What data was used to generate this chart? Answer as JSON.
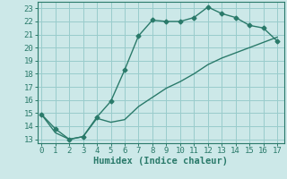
{
  "xlabel": "Humidex (Indice chaleur)",
  "bg_color": "#cce8e8",
  "grid_color": "#99cccc",
  "line_color": "#2a7a6a",
  "x_ticks": [
    0,
    1,
    2,
    3,
    4,
    5,
    6,
    7,
    8,
    9,
    10,
    11,
    12,
    13,
    14,
    15,
    16,
    17
  ],
  "y_ticks": [
    13,
    14,
    15,
    16,
    17,
    18,
    19,
    20,
    21,
    22,
    23
  ],
  "ylim": [
    12.7,
    23.5
  ],
  "xlim": [
    -0.3,
    17.5
  ],
  "curve1_x": [
    0,
    1,
    2,
    3,
    4,
    5,
    6,
    7,
    8,
    9,
    10,
    11,
    12,
    13,
    14,
    15,
    16,
    17
  ],
  "curve1_y": [
    14.9,
    13.8,
    13.0,
    13.2,
    14.7,
    15.9,
    18.3,
    20.9,
    22.1,
    22.0,
    22.0,
    22.3,
    23.1,
    22.6,
    22.3,
    21.7,
    21.5,
    20.5
  ],
  "curve2_x": [
    0,
    1,
    2,
    3,
    4,
    5,
    6,
    7,
    8,
    9,
    10,
    11,
    12,
    13,
    14,
    15,
    16,
    17
  ],
  "curve2_y": [
    14.9,
    13.5,
    13.0,
    13.2,
    14.6,
    14.3,
    14.5,
    15.5,
    16.2,
    16.9,
    17.4,
    18.0,
    18.7,
    19.2,
    19.6,
    20.0,
    20.4,
    20.8
  ],
  "marker": "D",
  "marker_size": 2.5,
  "linewidth": 1.0,
  "tick_fontsize": 6.5,
  "xlabel_fontsize": 7.5
}
